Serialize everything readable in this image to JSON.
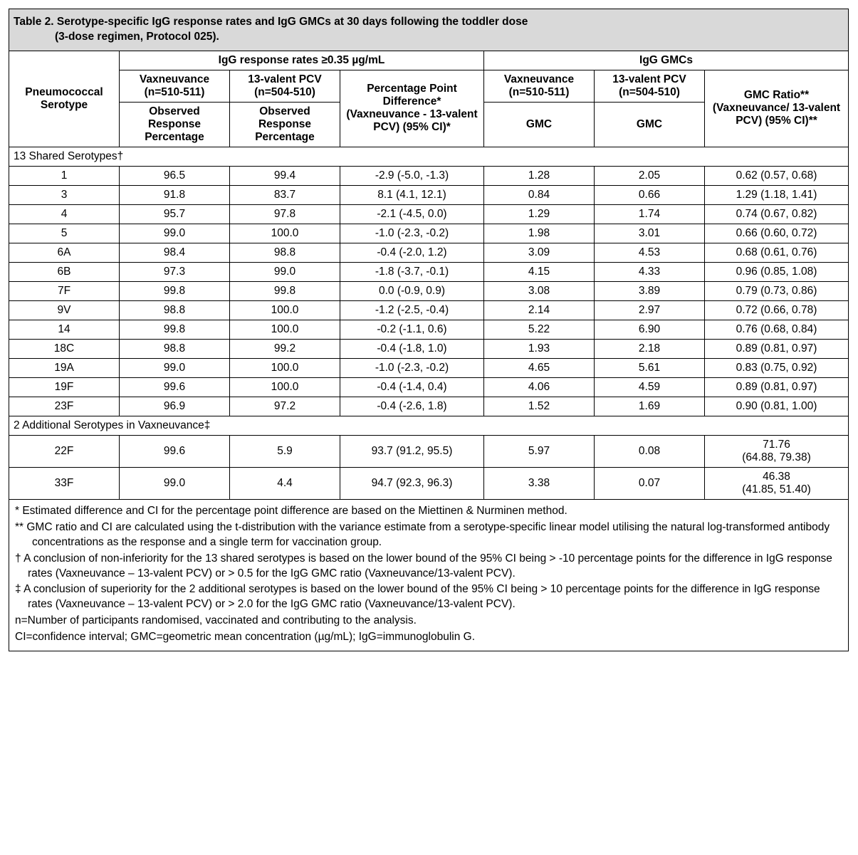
{
  "title_line1": "Table 2. Serotype-specific IgG response rates and IgG GMCs at 30 days following the toddler dose",
  "title_line2": "(3-dose regimen, Protocol 025).",
  "headers": {
    "serotype": "Pneumococcal Serotype",
    "rates_span": "IgG response rates ≥0.35 µg/mL",
    "gmcs_span": "IgG GMCs",
    "vax": "Vaxneuvance (n=510-511)",
    "pcv": "13-valent PCV (n=504-510)",
    "observed": "Observed Response Percentage",
    "ppd": "Percentage Point Difference* (Vaxneuvance - 13-valent PCV) (95% CI)*",
    "gmc": "GMC",
    "ratio": "GMC Ratio** (Vaxneuvance/ 13-valent PCV) (95% CI)**"
  },
  "section1": "13 Shared Serotypes†",
  "section2": "2 Additional Serotypes in Vaxneuvance‡",
  "shared": [
    {
      "s": "1",
      "v": "96.5",
      "p": "99.4",
      "d": "-2.9 (-5.0, -1.3)",
      "gv": "1.28",
      "gp": "2.05",
      "r": "0.62 (0.57, 0.68)"
    },
    {
      "s": "3",
      "v": "91.8",
      "p": "83.7",
      "d": "8.1 (4.1, 12.1)",
      "gv": "0.84",
      "gp": "0.66",
      "r": "1.29 (1.18, 1.41)"
    },
    {
      "s": "4",
      "v": "95.7",
      "p": "97.8",
      "d": "-2.1 (-4.5, 0.0)",
      "gv": "1.29",
      "gp": "1.74",
      "r": "0.74 (0.67, 0.82)"
    },
    {
      "s": "5",
      "v": "99.0",
      "p": "100.0",
      "d": "-1.0 (-2.3, -0.2)",
      "gv": "1.98",
      "gp": "3.01",
      "r": "0.66 (0.60, 0.72)"
    },
    {
      "s": "6A",
      "v": "98.4",
      "p": "98.8",
      "d": "-0.4 (-2.0, 1.2)",
      "gv": "3.09",
      "gp": "4.53",
      "r": "0.68 (0.61, 0.76)"
    },
    {
      "s": "6B",
      "v": "97.3",
      "p": "99.0",
      "d": "-1.8 (-3.7, -0.1)",
      "gv": "4.15",
      "gp": "4.33",
      "r": "0.96 (0.85, 1.08)"
    },
    {
      "s": "7F",
      "v": "99.8",
      "p": "99.8",
      "d": "0.0 (-0.9, 0.9)",
      "gv": "3.08",
      "gp": "3.89",
      "r": "0.79 (0.73, 0.86)"
    },
    {
      "s": "9V",
      "v": "98.8",
      "p": "100.0",
      "d": "-1.2 (-2.5, -0.4)",
      "gv": "2.14",
      "gp": "2.97",
      "r": "0.72 (0.66, 0.78)"
    },
    {
      "s": "14",
      "v": "99.8",
      "p": "100.0",
      "d": "-0.2 (-1.1, 0.6)",
      "gv": "5.22",
      "gp": "6.90",
      "r": "0.76 (0.68, 0.84)"
    },
    {
      "s": "18C",
      "v": "98.8",
      "p": "99.2",
      "d": "-0.4 (-1.8, 1.0)",
      "gv": "1.93",
      "gp": "2.18",
      "r": "0.89 (0.81, 0.97)"
    },
    {
      "s": "19A",
      "v": "99.0",
      "p": "100.0",
      "d": "-1.0 (-2.3, -0.2)",
      "gv": "4.65",
      "gp": "5.61",
      "r": "0.83 (0.75, 0.92)"
    },
    {
      "s": "19F",
      "v": "99.6",
      "p": "100.0",
      "d": "-0.4 (-1.4, 0.4)",
      "gv": "4.06",
      "gp": "4.59",
      "r": "0.89 (0.81, 0.97)"
    },
    {
      "s": "23F",
      "v": "96.9",
      "p": "97.2",
      "d": "-0.4 (-2.6, 1.8)",
      "gv": "1.52",
      "gp": "1.69",
      "r": "0.90 (0.81, 1.00)"
    }
  ],
  "additional": [
    {
      "s": "22F",
      "v": "99.6",
      "p": "5.9",
      "d": "93.7 (91.2, 95.5)",
      "gv": "5.97",
      "gp": "0.08",
      "r1": "71.76",
      "r2": "(64.88, 79.38)"
    },
    {
      "s": "33F",
      "v": "99.0",
      "p": "4.4",
      "d": "94.7 (92.3, 96.3)",
      "gv": "3.38",
      "gp": "0.07",
      "r1": "46.38",
      "r2": "(41.85, 51.40)"
    }
  ],
  "footnotes": {
    "a": "* Estimated difference and CI for the percentage point difference are based on the Miettinen & Nurminen method.",
    "b": "** GMC ratio and CI are calculated using the t-distribution with the variance estimate from a serotype-specific linear model utilising the natural log-transformed antibody concentrations as the response and a single term for vaccination group.",
    "c": "† A conclusion of non-inferiority for the 13 shared serotypes is based on the lower bound of the 95% CI being > -10 percentage points for the difference in IgG response rates (Vaxneuvance – 13-valent PCV) or > 0.5 for the IgG GMC ratio (Vaxneuvance/13-valent PCV).",
    "d": "‡ A conclusion of superiority for the 2 additional serotypes is based on the lower bound of the 95% CI being > 10 percentage points for the difference in IgG response rates (Vaxneuvance – 13-valent PCV) or > 2.0 for the IgG GMC ratio (Vaxneuvance/13-valent PCV).",
    "e": "n=Number of participants randomised, vaccinated and contributing to the analysis.",
    "f": "CI=confidence interval; GMC=geometric mean concentration (µg/mL); IgG=immunoglobulin G."
  }
}
